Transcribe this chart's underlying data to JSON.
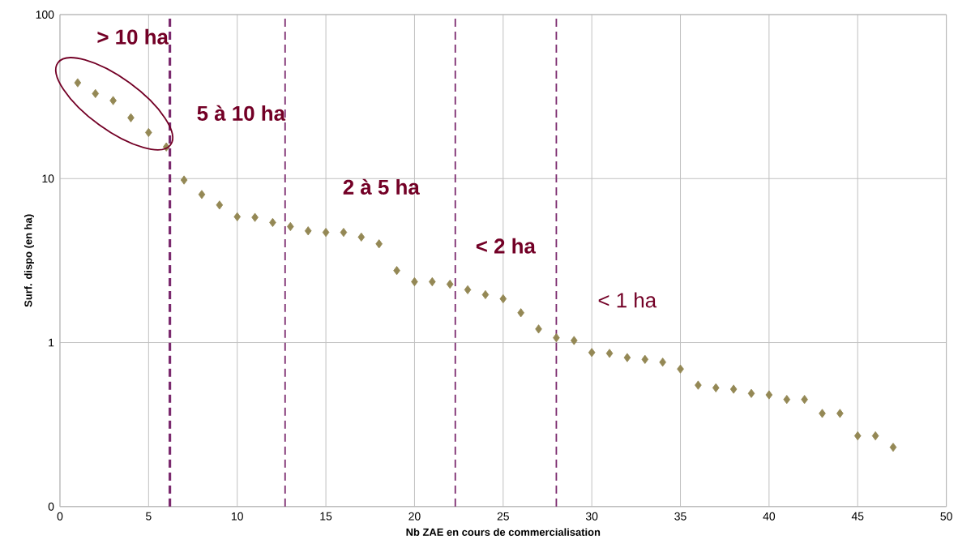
{
  "chart_data": {
    "type": "scatter",
    "xlabel": "Nb ZAE en cours de commercialisation",
    "ylabel": "Surf. dispo (en ha)",
    "x": [
      1,
      2,
      3,
      4,
      5,
      6,
      7,
      8,
      9,
      10,
      11,
      12,
      13,
      14,
      15,
      16,
      17,
      18,
      19,
      20,
      21,
      22,
      23,
      24,
      25,
      26,
      27,
      28,
      29,
      30,
      31,
      32,
      33,
      34,
      35,
      36,
      37,
      38,
      39,
      40,
      41,
      42,
      43,
      44,
      45,
      46,
      47
    ],
    "values": [
      38.4,
      33,
      29.9,
      23.5,
      19.1,
      15.6,
      9.8,
      8.0,
      6.9,
      5.85,
      5.8,
      5.4,
      5.1,
      4.8,
      4.7,
      4.7,
      4.4,
      4.0,
      2.75,
      2.35,
      2.35,
      2.27,
      2.1,
      1.96,
      1.85,
      1.52,
      1.21,
      1.07,
      1.03,
      0.87,
      0.86,
      0.81,
      0.79,
      0.76,
      0.69,
      0.55,
      0.53,
      0.52,
      0.49,
      0.48,
      0.45,
      0.45,
      0.37,
      0.37,
      0.27,
      0.27,
      0.23
    ],
    "color": "#948855",
    "marker": "diamond",
    "log": "y",
    "grid": true,
    "xlim": [
      0,
      50
    ],
    "xticks": [
      0,
      5,
      10,
      15,
      20,
      25,
      30,
      35,
      40,
      45,
      50
    ],
    "ylim": [
      0.1,
      100
    ],
    "yticks": [
      {
        "value": 0.1,
        "label": "0"
      },
      1,
      10,
      100
    ],
    "ref_lines": [
      {
        "axis": "x",
        "value": 6.2,
        "label": "5 à 10 ha",
        "color": "#7b2a6e",
        "line_style": "dashed"
      },
      {
        "axis": "x",
        "value": 12.7,
        "label": "2 à 5 ha",
        "color": "#7b2a6e",
        "line_style": "dashed"
      },
      {
        "axis": "x",
        "value": 22.3,
        "label": "< 2 ha",
        "color": "#7b2a6e",
        "line_style": "dashed"
      },
      {
        "axis": "x",
        "value": 28,
        "label": "< 1 ha",
        "color": "#7b2a6e",
        "line_style": "dashed"
      }
    ],
    "annotations": [
      "> 10 ha"
    ]
  }
}
